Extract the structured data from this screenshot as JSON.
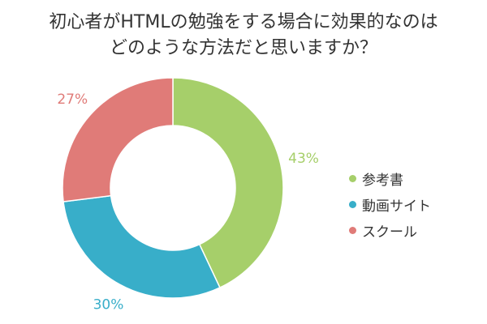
{
  "chart_data": {
    "type": "pie",
    "donut": true,
    "title": "初心者がHTMLの勉強をする場合に効果的なのは どのような方法だと思いますか？",
    "title_lines": [
      "初心者がHTMLの勉強をする場合に効果的なのは",
      "どのような方法だと思いますか？"
    ],
    "categories": [
      "参考書",
      "動画サイト",
      "スクール"
    ],
    "values": [
      43,
      30,
      27
    ],
    "value_labels": [
      "43%",
      "30%",
      "27%"
    ],
    "colors": [
      "#a6cf6a",
      "#38aec9",
      "#e07b78"
    ],
    "legend_position": "right",
    "start_angle": "12 o'clock",
    "direction": "clockwise"
  }
}
